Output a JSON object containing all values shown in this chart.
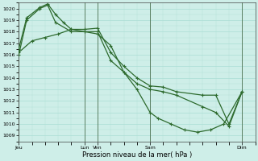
{
  "bg_color": "#ceeee8",
  "grid_color": "#aaddd5",
  "line_color": "#2d6a2d",
  "xlabel": "Pression niveau de la mer( hPa )",
  "ylim": [
    1008.5,
    1020.5
  ],
  "yticks": [
    1009,
    1010,
    1011,
    1012,
    1013,
    1014,
    1015,
    1016,
    1017,
    1018,
    1019,
    1020
  ],
  "xlim": [
    0,
    9.0
  ],
  "day_labels": [
    "Jeu",
    "Lun",
    "Ven",
    "Sam",
    "Dim"
  ],
  "day_positions": [
    0,
    2.5,
    3.0,
    5.0,
    8.5
  ],
  "line1_x": [
    0.0,
    0.3,
    0.8,
    1.1,
    1.4,
    1.7,
    2.0,
    2.5,
    3.0,
    3.5,
    4.0,
    4.5,
    5.0,
    5.5,
    6.0,
    7.0,
    7.5,
    8.0,
    8.5
  ],
  "line1_y": [
    1016.5,
    1019.2,
    1020.1,
    1020.4,
    1019.5,
    1018.8,
    1018.2,
    1018.2,
    1018.3,
    1016.2,
    1015.0,
    1014.0,
    1013.3,
    1013.2,
    1012.8,
    1012.5,
    1012.5,
    1010.0,
    1012.8
  ],
  "line2_x": [
    0.0,
    0.3,
    0.8,
    1.1,
    1.4,
    2.0,
    2.5,
    3.0,
    3.5,
    4.0,
    4.5,
    5.0,
    5.5,
    6.0,
    7.0,
    7.5,
    8.0,
    8.5
  ],
  "line2_y": [
    1016.0,
    1019.0,
    1020.0,
    1020.3,
    1018.8,
    1018.0,
    1018.0,
    1018.0,
    1015.5,
    1014.5,
    1013.5,
    1013.0,
    1012.8,
    1012.5,
    1011.5,
    1011.0,
    1009.8,
    1012.8
  ],
  "line3_x": [
    0.0,
    0.5,
    1.0,
    1.5,
    2.0,
    2.5,
    3.0,
    3.5,
    4.0,
    4.5,
    5.0,
    5.3,
    5.8,
    6.3,
    6.8,
    7.3,
    7.8,
    8.5
  ],
  "line3_y": [
    1016.2,
    1017.2,
    1017.5,
    1017.8,
    1018.2,
    1018.0,
    1017.8,
    1016.8,
    1014.5,
    1013.0,
    1011.0,
    1010.5,
    1010.0,
    1009.5,
    1009.3,
    1009.5,
    1010.0,
    1012.8
  ]
}
